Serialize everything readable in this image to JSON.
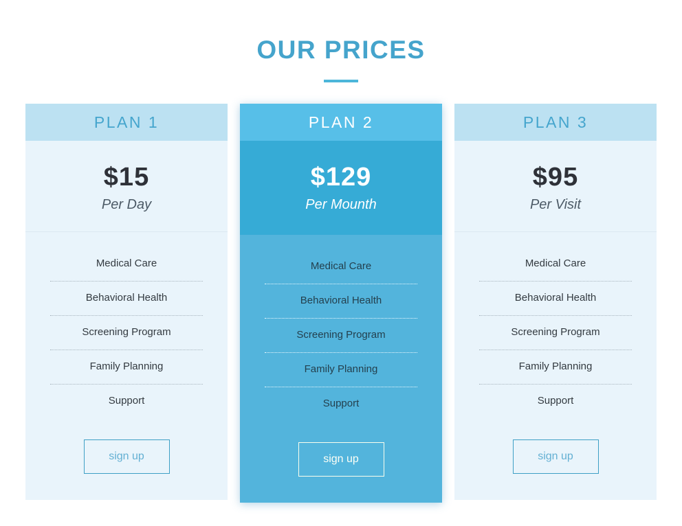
{
  "page": {
    "title": "OUR PRICES"
  },
  "colors": {
    "accent_text": "#45a4cc",
    "title_underline": "#4cb6da",
    "light_header_bg": "#bce1f2",
    "light_body_bg": "#e9f4fb",
    "featured_header_bg": "#57bfe8",
    "featured_price_bg": "#36abd6",
    "featured_body_bg": "#53b4dc",
    "price_text_dark": "#2e3138",
    "feature_text_dark": "#333a40"
  },
  "plans": [
    {
      "name": "PLAN 1",
      "price": "$15",
      "period": "Per Day",
      "features": [
        "Medical Care",
        "Behavioral Health",
        "Screening Program",
        "Family Planning",
        "Support"
      ],
      "cta": "sign up",
      "featured": false
    },
    {
      "name": "PLAN 2",
      "price": "$129",
      "period": "Per Mounth",
      "features": [
        "Medical Care",
        "Behavioral Health",
        "Screening Program",
        "Family Planning",
        "Support"
      ],
      "cta": "sign up",
      "featured": true
    },
    {
      "name": "PLAN 3",
      "price": "$95",
      "period": "Per Visit",
      "features": [
        "Medical Care",
        "Behavioral Health",
        "Screening Program",
        "Family Planning",
        "Support"
      ],
      "cta": "sign up",
      "featured": false
    }
  ]
}
